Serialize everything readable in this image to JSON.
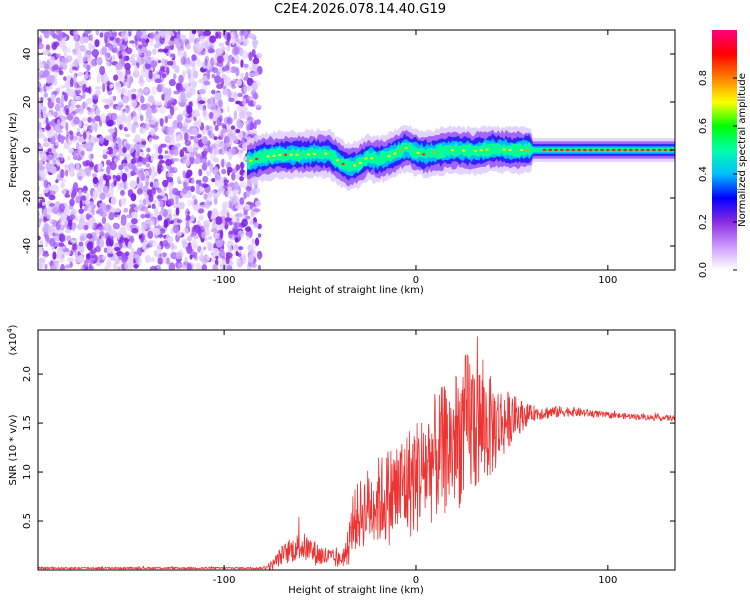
{
  "chart_data": [
    {
      "type": "heatmap",
      "title": "C2E4.2026.078.14.40.G19",
      "xlabel": "Height of straight line (km)",
      "ylabel": "Frequency (Hz)",
      "xlim": [
        -197,
        135
      ],
      "ylim": [
        -50,
        50
      ],
      "xticks": [
        -100,
        0,
        100
      ],
      "xtick_labels": [
        "-100",
        "0",
        "100"
      ],
      "yticks": [
        40,
        20,
        0,
        -20,
        -40
      ],
      "ytick_labels": [
        "40",
        "20",
        "0",
        "-20",
        "-40"
      ],
      "noise_region_x": [
        -197,
        -83
      ],
      "ridge": {
        "x": [
          -88,
          -80,
          -70,
          -60,
          -52,
          -45,
          -40,
          -35,
          -30,
          -25,
          -20,
          -15,
          -10,
          -5,
          0,
          5,
          10,
          20,
          30,
          40,
          50,
          60,
          70,
          80,
          100,
          120,
          135
        ],
        "freq": [
          -5,
          -3,
          -2,
          -2,
          -1.5,
          -1.5,
          -5,
          -7,
          -6,
          -3,
          -4,
          -3,
          -1,
          1,
          -1,
          -2,
          -1,
          0,
          -0.5,
          0.5,
          0,
          0,
          0,
          0,
          0,
          0,
          0
        ]
      },
      "colorbar": {
        "label": "Normalized spectral amplitude",
        "ticks": [
          0.0,
          0.2,
          0.4,
          0.6,
          0.8
        ],
        "tick_labels": [
          "0.0",
          "0.2",
          "0.4",
          "0.6",
          "0.8"
        ],
        "range": [
          0,
          1
        ],
        "colors": [
          "#ffffff",
          "#cc99ff",
          "#8a2be2",
          "#0000ff",
          "#00bfff",
          "#00ffaa",
          "#00ff00",
          "#ffff00",
          "#ff8000",
          "#ff0000",
          "#ff0080"
        ]
      }
    },
    {
      "type": "line",
      "xlabel": "Height of straight line (km)",
      "ylabel": "SNR (10 * v/v)",
      "multiplier_label": "(x10",
      "multiplier_exp": "4",
      "multiplier_close": ")",
      "xlim": [
        -197,
        135
      ],
      "ylim": [
        0,
        2.45
      ],
      "xticks": [
        -100,
        0,
        100
      ],
      "xtick_labels": [
        "-100",
        "0",
        "100"
      ],
      "yticks": [
        0.5,
        1.0,
        1.5,
        2.0
      ],
      "ytick_labels": [
        "0.5",
        "1.0",
        "1.5",
        "2.0"
      ],
      "series": [
        {
          "name": "SNR",
          "color": "#ee3333",
          "envelope": {
            "x": [
              -197,
              -80,
              -75,
              -70,
              -60,
              -50,
              -40,
              -35,
              -33,
              -30,
              -25,
              -20,
              -10,
              0,
              10,
              20,
              28,
              40,
              50,
              60,
              80,
              100,
              120,
              135
            ],
            "avg": [
              0.02,
              0.02,
              0.05,
              0.15,
              0.25,
              0.15,
              0.1,
              0.2,
              0.5,
              0.55,
              0.65,
              0.7,
              0.8,
              0.95,
              1.15,
              1.3,
              1.5,
              1.45,
              1.55,
              1.6,
              1.62,
              1.58,
              1.56,
              1.55
            ],
            "amp": [
              0.01,
              0.01,
              0.05,
              0.1,
              0.15,
              0.12,
              0.08,
              0.15,
              0.3,
              0.35,
              0.4,
              0.45,
              0.55,
              0.6,
              0.65,
              0.7,
              0.8,
              0.5,
              0.25,
              0.08,
              0.05,
              0.03,
              0.03,
              0.03
            ]
          }
        }
      ]
    }
  ]
}
